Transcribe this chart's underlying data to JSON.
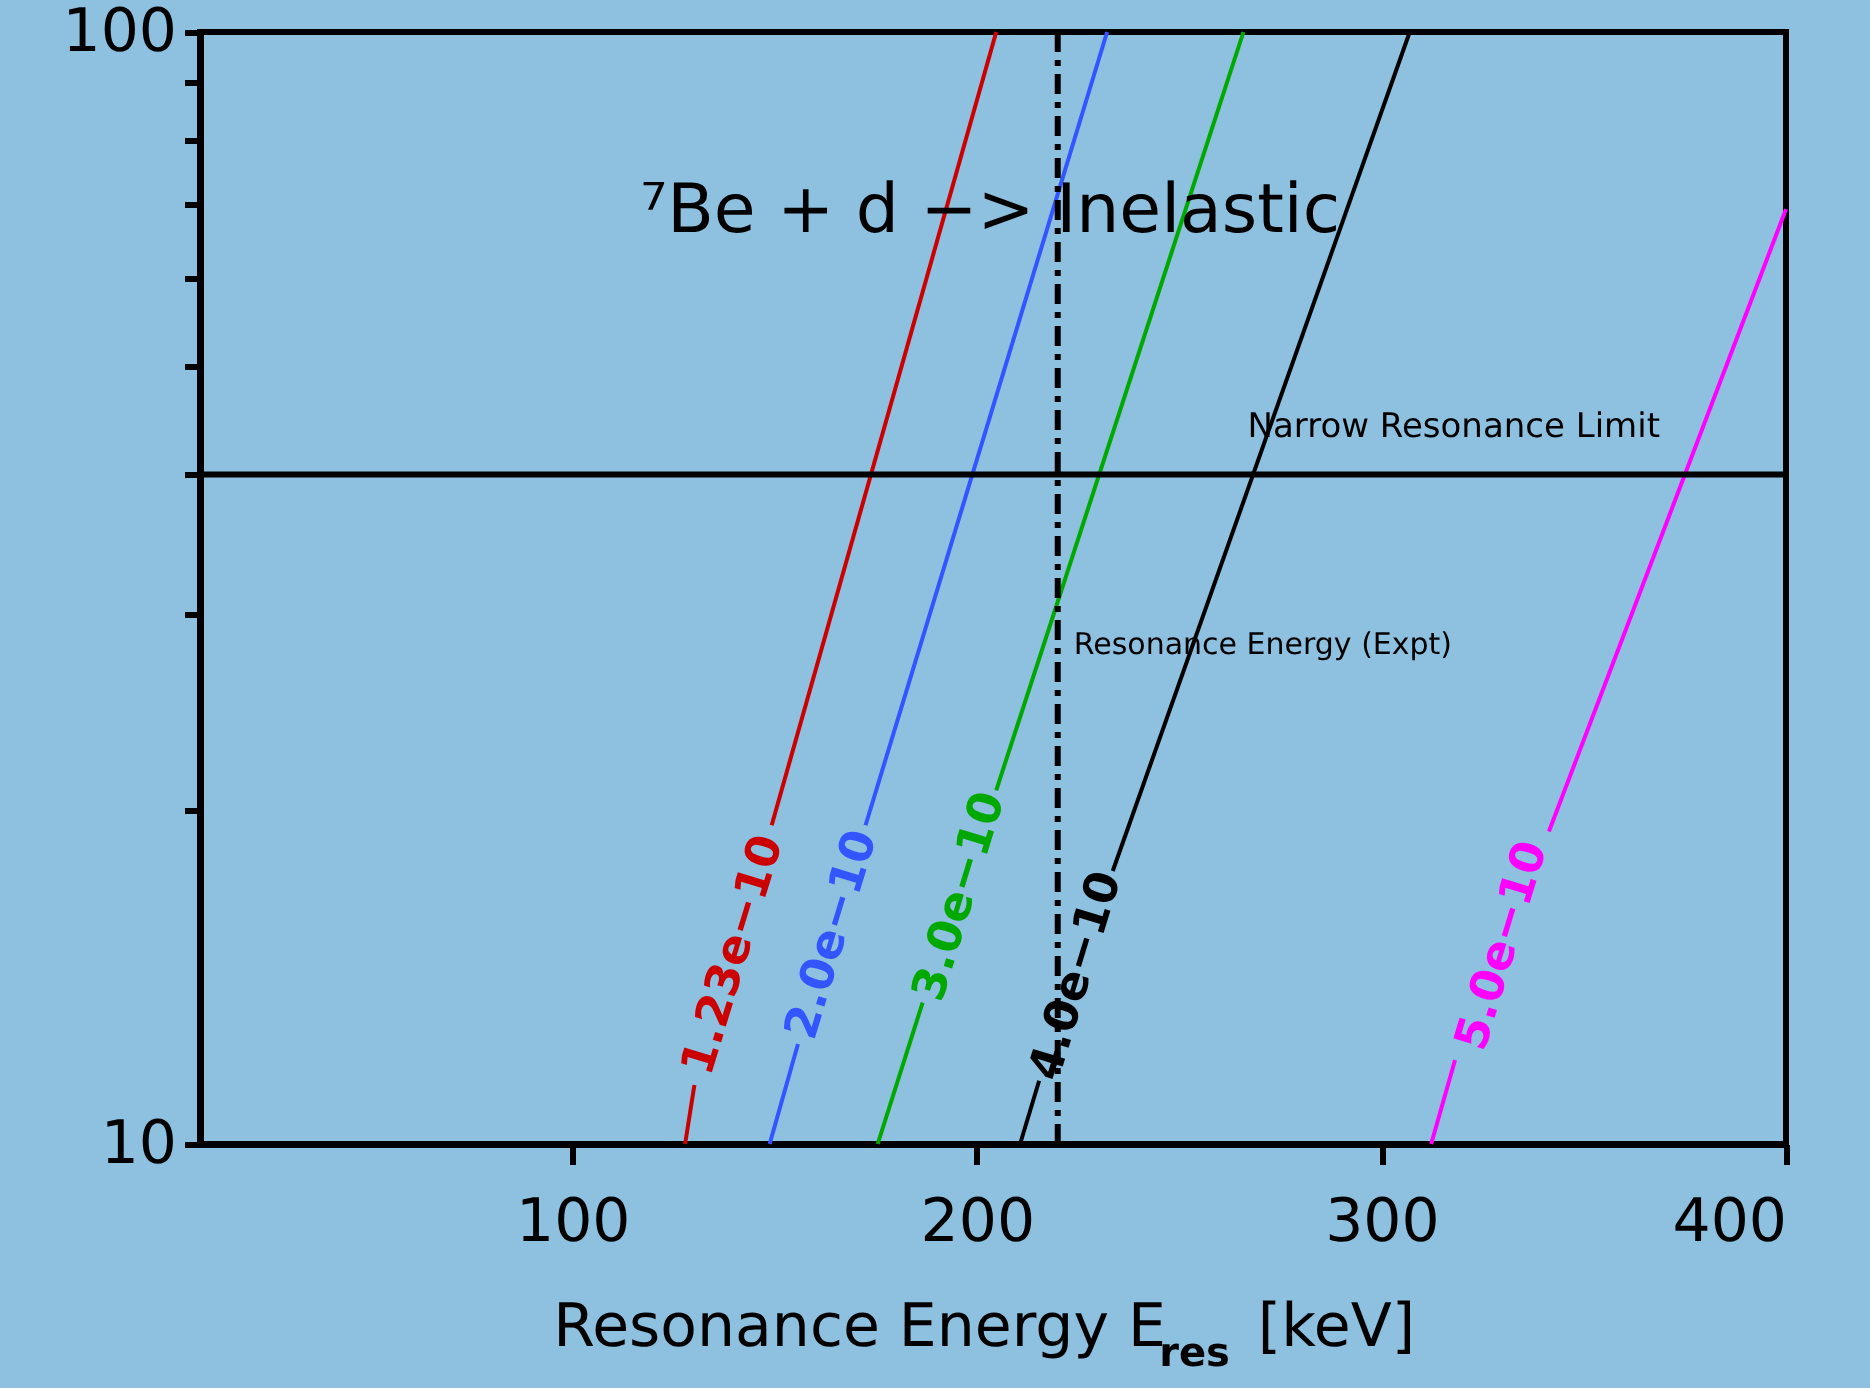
{
  "chart_data": {
    "type": "line",
    "xlabel": "Resonance Energy E$_{res}$ [keV]",
    "annotations": [
      "⁷Be + d −> Inelastic"
    ],
    "series": [
      {
        "name": "1.23e−10",
        "color": "#cc0000",
        "x": [
          127.9,
          130.2,
          null,
          149.3,
          204.8
        ],
        "values": [
          10,
          11.3,
          null,
          19.35,
          100
        ]
      },
      {
        "name": "2.0e−10",
        "color": "#3355ff",
        "x": [
          148.8,
          155.8,
          null,
          172.5,
          232.2
        ],
        "values": [
          10,
          12.3,
          null,
          19.35,
          100
        ]
      },
      {
        "name": "3.0e−10",
        "color": "#00a800",
        "x": [
          175.5,
          186.6,
          null,
          204.8,
          265.9
        ],
        "values": [
          10,
          13.4,
          null,
          20.8,
          100
        ]
      },
      {
        "name": "4.0e−10",
        "color": "#000000",
        "x": [
          210.7,
          215.4,
          null,
          233.6,
          307.0
        ],
        "values": [
          10,
          11.4,
          null,
          17.6,
          100
        ]
      },
      {
        "name": "5.0e−10",
        "color": "#ff00ff",
        "x": [
          312.3,
          318.2,
          null,
          341.4,
          400
        ],
        "values": [
          10,
          11.9,
          null,
          19.1,
          69.3
        ]
      }
    ],
    "ref_lines": [
      {
        "axis": "y",
        "value": 40,
        "label": "Narrow Resonance Limit",
        "color": "#000000",
        "line_style": "solid"
      },
      {
        "axis": "x",
        "value": 220,
        "label": "Resonance Energy (Expt)",
        "color": "#000000",
        "line_style": "dashed"
      }
    ],
    "log": "y",
    "xlim": [
      8,
      400
    ],
    "ylim": [
      10,
      100
    ],
    "xticks": [
      100,
      200,
      300,
      400
    ],
    "yticks": [
      10,
      {
        "value": 20,
        "label": null
      },
      {
        "value": 30,
        "label": null
      },
      {
        "value": 40,
        "label": null
      },
      {
        "value": 50,
        "label": null
      },
      {
        "value": 60,
        "label": null
      },
      {
        "value": 70,
        "label": null
      },
      {
        "value": 80,
        "label": null
      },
      {
        "value": 90,
        "label": null
      },
      100
    ],
    "grid": false,
    "line_style": "solid",
    "marker": "none"
  }
}
